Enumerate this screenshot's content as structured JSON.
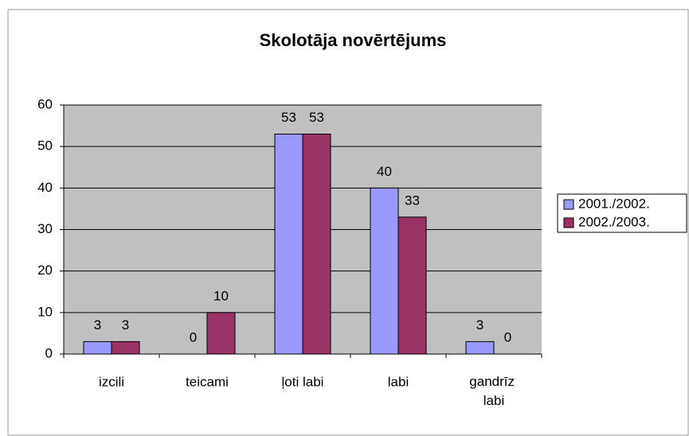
{
  "chart_data": {
    "type": "bar",
    "title": "Skolotāja novērtējums",
    "categories": [
      "izcili",
      "teicami",
      "ļoti labi",
      "labi",
      "gandrīz labi"
    ],
    "series": [
      {
        "name": "2001./2002.",
        "color": "#9999ff",
        "values": [
          3,
          0,
          53,
          40,
          3
        ]
      },
      {
        "name": "2002./2003.",
        "color": "#993366",
        "values": [
          3,
          10,
          53,
          33,
          0
        ]
      }
    ],
    "ylim": [
      0,
      60
    ],
    "yticks": [
      0,
      10,
      20,
      30,
      40,
      50,
      60
    ],
    "grid": true,
    "legend": "right"
  }
}
